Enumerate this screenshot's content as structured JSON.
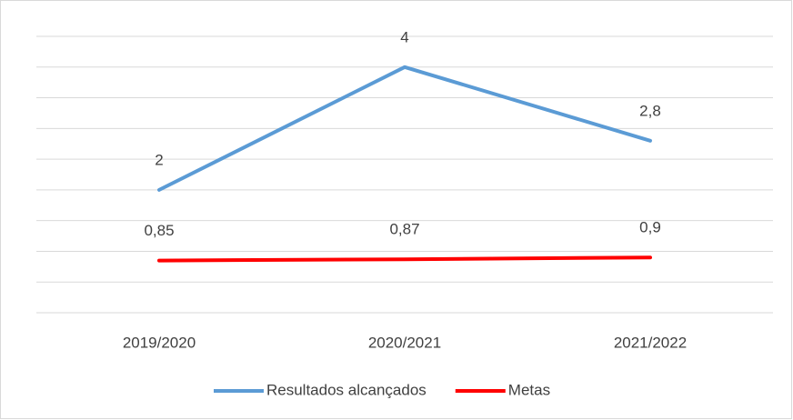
{
  "chart_data": {
    "type": "line",
    "categories": [
      "2019/2020",
      "2020/2021",
      "2021/2022"
    ],
    "series": [
      {
        "name": "Resultados alcançados",
        "color": "#5b9bd5",
        "values": [
          2,
          4,
          2.8
        ],
        "value_labels": [
          "2",
          "4",
          "2,8"
        ]
      },
      {
        "name": "Metas",
        "color": "#ff0000",
        "values": [
          0.85,
          0.87,
          0.9
        ],
        "value_labels": [
          "0,85",
          "0,87",
          "0,9"
        ]
      }
    ],
    "ylim": [
      0,
      4.5
    ],
    "yticks": [
      0,
      0.5,
      1,
      1.5,
      2,
      2.5,
      3,
      3.5,
      4,
      4.5
    ],
    "grid": true,
    "legend": "bottom"
  }
}
